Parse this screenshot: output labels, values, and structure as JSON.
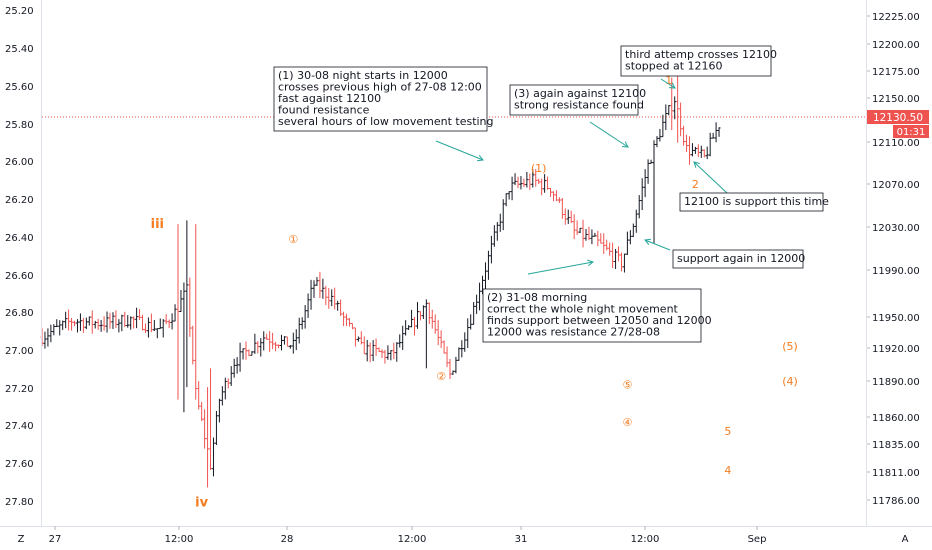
{
  "chart_data": {
    "type": "ohlc-bars",
    "left_axis_ticks": [
      "25.20",
      "25.40",
      "25.60",
      "25.80",
      "26.00",
      "26.20",
      "26.40",
      "26.60",
      "26.80",
      "27.00",
      "27.20",
      "27.40",
      "27.60",
      "27.80"
    ],
    "right_axis_ticks": [
      "12225.00",
      "12200.00",
      "12175.00",
      "12150.00",
      "12110.00",
      "12070.00",
      "12030.00",
      "11990.00",
      "11950.00",
      "11920.00",
      "11890.00",
      "11860.00",
      "11835.00",
      "11811.00",
      "11786.00"
    ],
    "x_ticks": [
      "27",
      "12:00",
      "28",
      "12:00",
      "31",
      "12:00",
      "Sep"
    ],
    "last_price": {
      "label": "12130.50",
      "timer": "01:31",
      "value": 12130.5,
      "color": "#ef5350"
    },
    "corner_left": "Z",
    "corner_right": "A",
    "bar_colors": {
      "up": "#131722",
      "down": "#ef5350"
    },
    "anchors": [
      {
        "t": 0,
        "p": 11955
      },
      {
        "t": 10,
        "p": 11968
      },
      {
        "t": 20,
        "p": 11966
      },
      {
        "t": 30,
        "p": 11969
      },
      {
        "t": 40,
        "p": 11961
      },
      {
        "t": 45,
        "p": 11975
      },
      {
        "t": 49,
        "p": 11992
      },
      {
        "t": 52,
        "p": 11910
      },
      {
        "t": 57,
        "p": 11853
      },
      {
        "t": 60,
        "p": 11905
      },
      {
        "t": 65,
        "p": 11935
      },
      {
        "t": 75,
        "p": 11955
      },
      {
        "t": 85,
        "p": 11948
      },
      {
        "t": 92,
        "p": 11997
      },
      {
        "t": 98,
        "p": 11986
      },
      {
        "t": 108,
        "p": 11946
      },
      {
        "t": 118,
        "p": 11940
      },
      {
        "t": 130,
        "p": 11982
      },
      {
        "t": 138,
        "p": 11925
      },
      {
        "t": 145,
        "p": 11970
      },
      {
        "t": 158,
        "p": 12074
      },
      {
        "t": 166,
        "p": 12080
      },
      {
        "t": 172,
        "p": 12074
      },
      {
        "t": 180,
        "p": 12039
      },
      {
        "t": 188,
        "p": 12030
      },
      {
        "t": 196,
        "p": 12014
      },
      {
        "t": 200,
        "p": 12045
      },
      {
        "t": 205,
        "p": 12092
      },
      {
        "t": 210,
        "p": 12125
      },
      {
        "t": 214,
        "p": 12145
      },
      {
        "t": 218,
        "p": 12105
      },
      {
        "t": 224,
        "p": 12098
      },
      {
        "t": 230,
        "p": 12130
      }
    ],
    "total_bars": 230,
    "wave_labels": [
      {
        "text": "iii",
        "t": 39,
        "p": 12045
      },
      {
        "text": "iv",
        "t": 54,
        "p": 11823
      },
      {
        "text": "①",
        "t": 85,
        "p": 12033
      },
      {
        "text": "②",
        "t": 135,
        "p": 11924
      },
      {
        "text": "(1)",
        "t": 168,
        "p": 12090
      },
      {
        "text": "(2)",
        "t": 197,
        "p": 11985
      },
      {
        "text": "⑤",
        "t": 198,
        "p": 11917
      },
      {
        "text": "④",
        "t": 198,
        "p": 11887
      },
      {
        "text": "1",
        "t": 212,
        "p": 12160
      },
      {
        "text": "2",
        "t": 221,
        "p": 12077
      },
      {
        "text": "5",
        "t": 232,
        "p": 11880
      },
      {
        "text": "4",
        "t": 232,
        "p": 11849
      },
      {
        "text": "(5)",
        "t": 253,
        "p": 11948
      },
      {
        "text": "(4)",
        "t": 253,
        "p": 11920
      }
    ],
    "annotations": [
      {
        "lines": [
          "(1) 30-08 night starts in 12000",
          "crosses previous high of 27-08 12:00",
          "fast against 12100",
          "found resistance",
          "several hours of low movement testing"
        ]
      },
      {
        "lines": [
          "(3) again against 12100",
          "strong resistance found"
        ]
      },
      {
        "lines": [
          "third attemp crosses 12100",
          "stopped at 12160"
        ]
      },
      {
        "lines": [
          "12100 is support this time"
        ]
      },
      {
        "lines": [
          "support again in 12000"
        ]
      },
      {
        "lines": [
          "(2) 31-08 morning",
          "correct the whole night movement",
          "finds support between 12050 and 12000",
          "12000 was resistance 27/28-08"
        ]
      }
    ]
  }
}
